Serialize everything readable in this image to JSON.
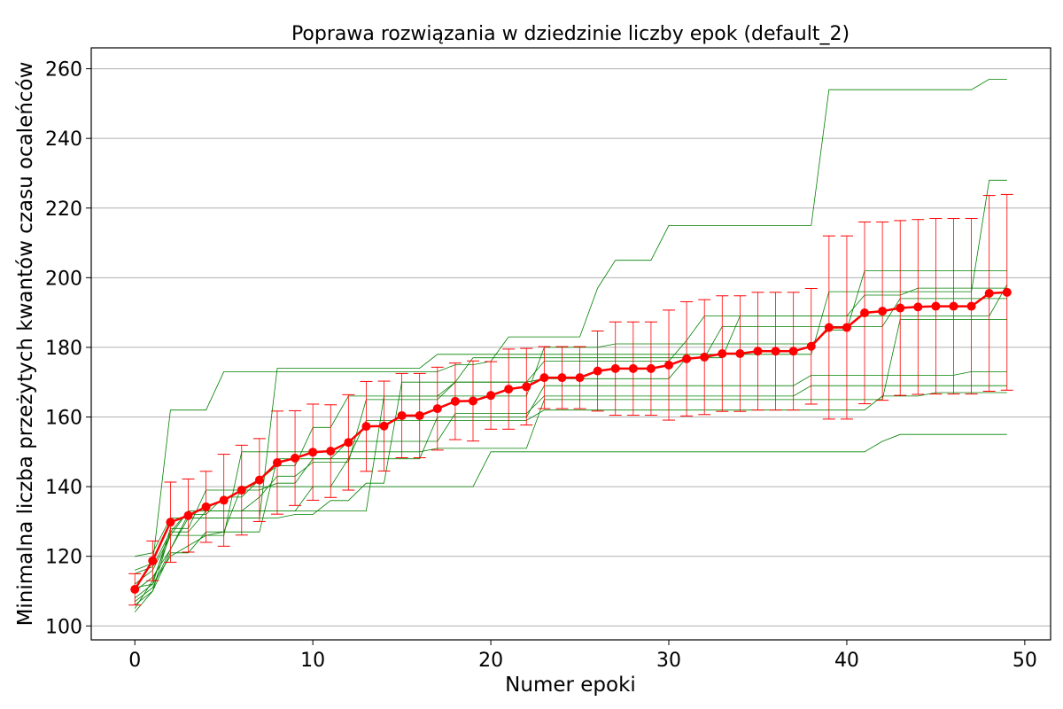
{
  "chart_data": {
    "type": "line",
    "title": "Poprawa rozwiązania w dziedzinie liczby epok (default_2)",
    "xlabel": "Numer epoki",
    "ylabel": "Minimalna liczba przeżytych kwantów czasu ocaleńców",
    "xlim": [
      -2.45,
      51.45
    ],
    "ylim": [
      96,
      266
    ],
    "xticks": [
      0,
      10,
      20,
      30,
      40,
      50
    ],
    "yticks": [
      100,
      120,
      140,
      160,
      180,
      200,
      220,
      240,
      260
    ],
    "grid": "horizontal",
    "x": [
      0,
      1,
      2,
      3,
      4,
      5,
      6,
      7,
      8,
      9,
      10,
      11,
      12,
      13,
      14,
      15,
      16,
      17,
      18,
      19,
      20,
      21,
      22,
      23,
      24,
      25,
      26,
      27,
      28,
      29,
      30,
      31,
      32,
      33,
      34,
      35,
      36,
      37,
      38,
      39,
      40,
      41,
      42,
      43,
      44,
      45,
      46,
      47,
      48,
      49
    ],
    "mean": {
      "color": "#ff0000",
      "values": [
        110.5,
        118.7,
        129.8,
        131.7,
        134.2,
        136.1,
        139.0,
        141.9,
        146.9,
        148.2,
        149.9,
        150.2,
        152.7,
        157.3,
        157.4,
        160.4,
        160.4,
        162.4,
        164.5,
        164.6,
        166.2,
        168.0,
        168.7,
        171.3,
        171.3,
        171.3,
        173.2,
        173.9,
        173.9,
        173.9,
        174.9,
        176.7,
        177.2,
        178.2,
        178.2,
        178.9,
        178.9,
        178.9,
        180.3,
        185.7,
        185.7,
        189.9,
        190.4,
        191.3,
        191.6,
        191.8,
        191.8,
        191.8,
        195.5,
        195.8
      ]
    },
    "error": {
      "color": "#ff0000",
      "values": [
        4.5,
        5.7,
        11.5,
        10.5,
        10.2,
        13.2,
        12.9,
        11.9,
        14.8,
        13.6,
        13.8,
        13.3,
        13.7,
        12.9,
        12.9,
        12.1,
        12.1,
        11.9,
        11.0,
        11.5,
        9.7,
        11.5,
        11.0,
        8.9,
        8.9,
        8.9,
        11.5,
        13.4,
        13.4,
        13.4,
        15.8,
        16.4,
        16.5,
        16.6,
        16.6,
        16.9,
        16.9,
        16.9,
        16.6,
        26.3,
        26.3,
        26.1,
        25.6,
        25.1,
        25.1,
        25.2,
        25.2,
        25.2,
        28.1,
        28.1
      ]
    },
    "runs": {
      "color": "#008000",
      "series": [
        [
          116,
          118,
          162,
          162,
          162,
          173,
          173,
          173,
          173,
          173,
          173,
          173,
          173,
          173,
          173,
          173,
          173,
          173,
          175,
          175,
          176,
          183,
          183,
          183,
          183,
          183,
          197,
          205,
          205,
          205,
          215,
          215,
          215,
          215,
          215,
          215,
          215,
          215,
          215,
          254,
          254,
          254,
          254,
          254,
          254,
          254,
          254,
          254,
          257,
          257
        ],
        [
          120,
          121,
          131,
          131,
          131,
          131,
          131,
          131,
          174,
          174,
          174,
          174,
          174,
          174,
          174,
          174,
          174,
          178,
          178,
          178,
          178,
          178,
          178,
          178,
          178,
          178,
          178,
          178,
          178,
          178,
          178,
          178,
          178,
          178,
          178,
          178,
          178,
          178,
          178,
          196,
          196,
          196,
          196,
          196,
          196,
          196,
          196,
          196,
          228,
          228
        ],
        [
          105,
          113,
          126,
          133,
          133,
          133,
          133,
          133,
          133,
          133,
          133,
          133,
          133,
          133,
          166,
          166,
          166,
          166,
          166,
          166,
          166,
          166,
          166,
          180,
          180,
          180,
          180,
          181,
          181,
          181,
          181,
          181,
          181,
          181,
          181,
          181,
          181,
          181,
          181,
          185,
          185,
          202,
          202,
          202,
          202,
          202,
          202,
          202,
          202,
          202
        ],
        [
          107,
          111,
          122,
          132,
          132,
          137,
          137,
          142,
          146,
          146,
          157,
          157,
          166,
          166,
          166,
          166,
          166,
          166,
          170,
          170,
          170,
          170,
          170,
          176,
          176,
          176,
          176,
          176,
          176,
          176,
          176,
          182,
          189,
          189,
          189,
          189,
          189,
          189,
          189,
          189,
          189,
          195,
          195,
          195,
          197,
          197,
          197,
          197,
          197,
          197
        ],
        [
          106,
          110,
          127,
          127,
          133,
          133,
          133,
          137,
          143,
          143,
          147,
          147,
          147,
          165,
          165,
          165,
          165,
          165,
          170,
          177,
          177,
          177,
          177,
          177,
          177,
          177,
          177,
          177,
          177,
          177,
          177,
          177,
          177,
          177,
          189,
          189,
          189,
          189,
          189,
          189,
          189,
          189,
          189,
          189,
          189,
          189,
          189,
          189,
          189,
          198
        ],
        [
          110,
          114,
          122,
          131,
          131,
          131,
          131,
          131,
          131,
          132,
          132,
          136,
          136,
          141,
          141,
          170,
          170,
          170,
          170,
          170,
          170,
          170,
          170,
          171,
          171,
          171,
          171,
          171,
          171,
          171,
          171,
          177,
          177,
          186,
          186,
          186,
          186,
          186,
          186,
          186,
          186,
          186,
          186,
          194,
          194,
          194,
          194,
          194,
          194,
          194
        ],
        [
          115,
          117,
          127,
          133,
          133,
          133,
          133,
          133,
          133,
          133,
          140,
          140,
          148,
          148,
          148,
          148,
          148,
          160,
          160,
          160,
          160,
          160,
          160,
          169,
          169,
          169,
          169,
          169,
          169,
          169,
          169,
          169,
          169,
          169,
          169,
          169,
          169,
          169,
          172,
          172,
          172,
          172,
          172,
          172,
          172,
          172,
          172,
          173,
          173,
          173
        ],
        [
          111,
          112,
          128,
          128,
          139,
          139,
          139,
          139,
          141,
          141,
          148,
          148,
          153,
          153,
          153,
          153,
          153,
          153,
          161,
          161,
          161,
          161,
          161,
          166,
          166,
          166,
          166,
          166,
          166,
          166,
          166,
          166,
          166,
          166,
          166,
          166,
          166,
          166,
          169,
          169,
          169,
          169,
          169,
          169,
          169,
          169,
          169,
          169,
          169,
          169
        ],
        [
          104,
          110,
          121,
          121,
          127,
          127,
          127,
          127,
          148,
          148,
          148,
          148,
          148,
          159,
          159,
          159,
          159,
          159,
          159,
          159,
          159,
          159,
          159,
          162,
          162,
          162,
          162,
          162,
          162,
          162,
          162,
          162,
          162,
          162,
          162,
          162,
          162,
          162,
          162,
          162,
          162,
          162,
          166,
          166,
          166,
          167,
          167,
          167,
          167,
          167
        ],
        [
          108,
          112,
          120,
          123,
          126,
          126,
          150,
          150,
          150,
          150,
          150,
          150,
          150,
          150,
          150,
          150,
          150,
          151,
          151,
          151,
          151,
          151,
          151,
          165,
          165,
          165,
          165,
          165,
          165,
          165,
          165,
          165,
          165,
          165,
          165,
          165,
          165,
          165,
          165,
          165,
          165,
          165,
          165,
          188,
          188,
          188,
          188,
          188,
          188,
          188
        ],
        [
          112,
          116,
          126,
          126,
          126,
          127,
          140,
          140,
          140,
          140,
          140,
          140,
          140,
          140,
          140,
          140,
          140,
          140,
          140,
          140,
          150,
          150,
          150,
          150,
          150,
          150,
          150,
          150,
          150,
          150,
          150,
          150,
          150,
          150,
          150,
          150,
          150,
          150,
          150,
          150,
          150,
          150,
          153,
          155,
          155,
          155,
          155,
          155,
          155,
          155
        ]
      ]
    }
  }
}
